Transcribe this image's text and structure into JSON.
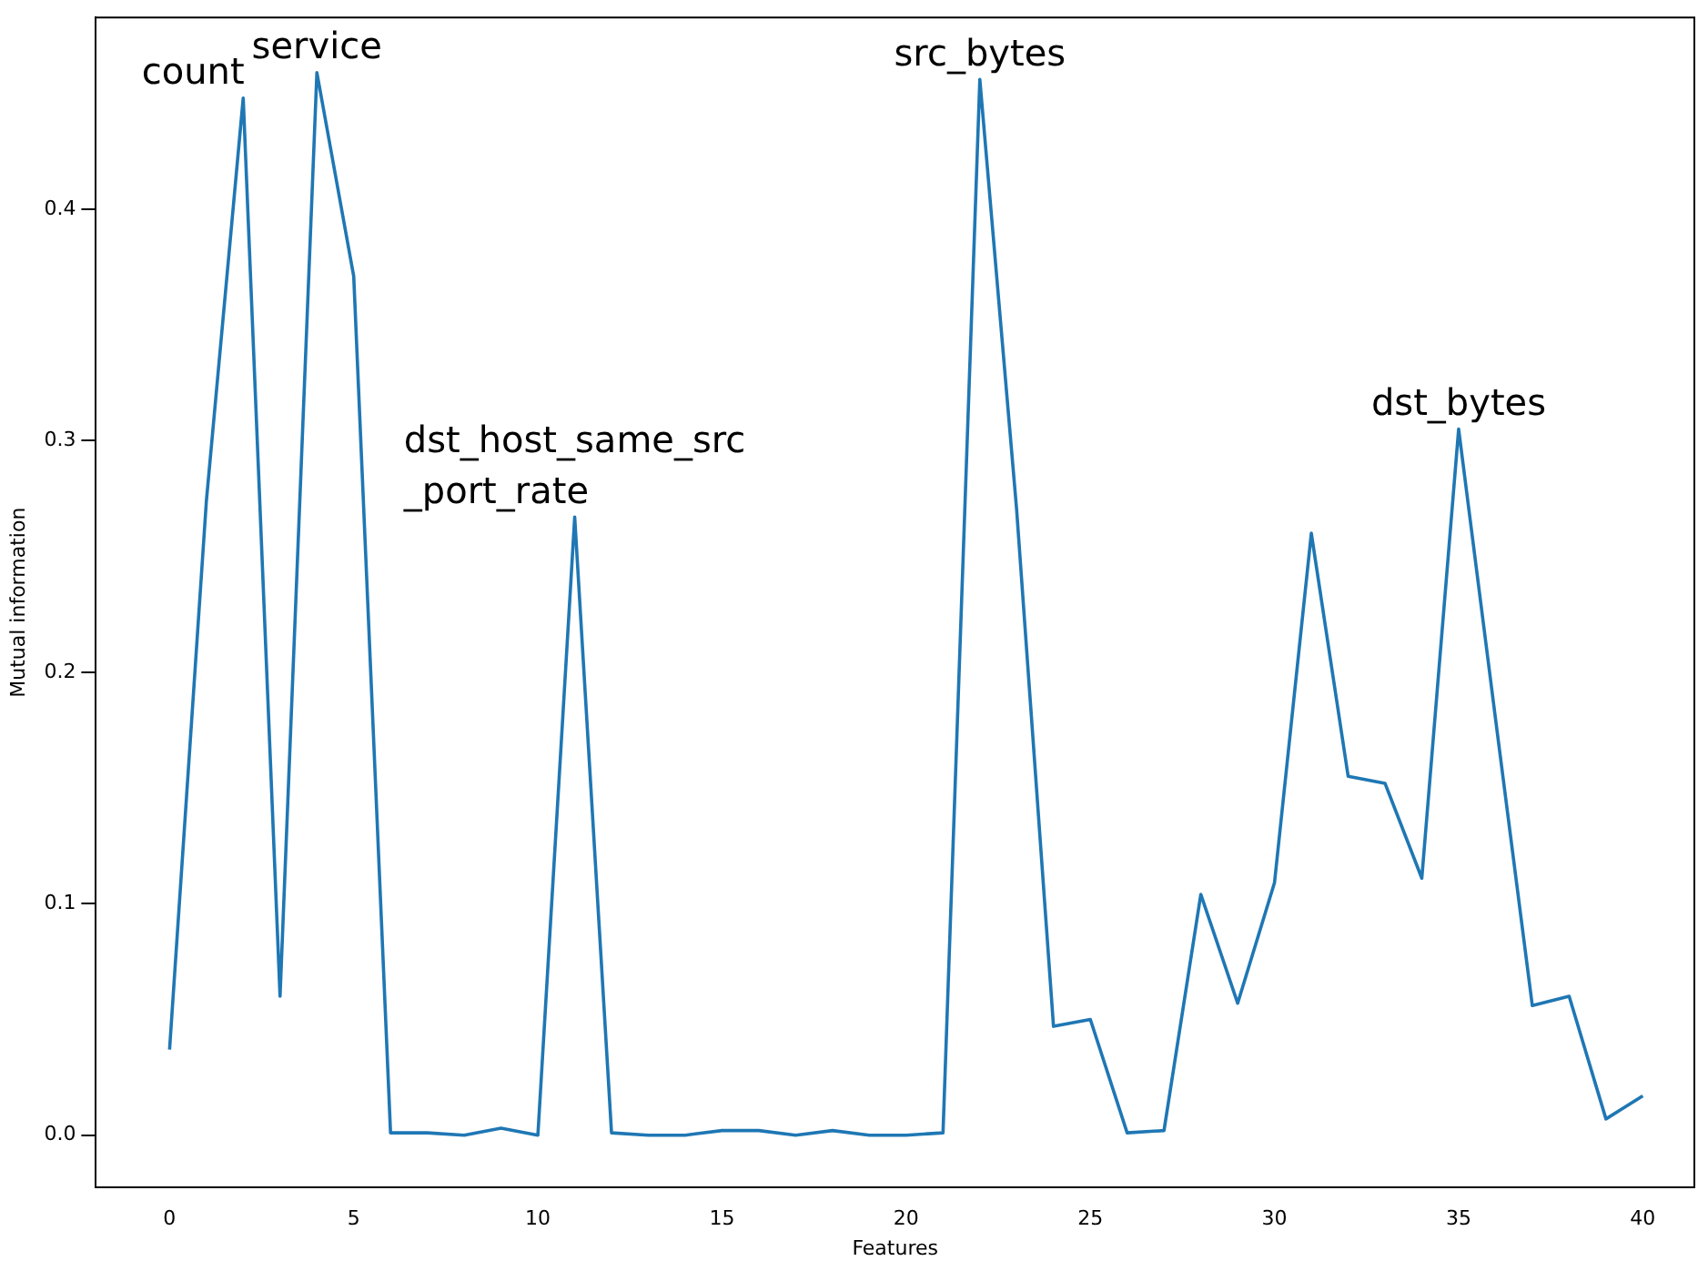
{
  "chart_data": {
    "type": "line",
    "xlabel": "Features",
    "ylabel": "Mutual information",
    "x": [
      0,
      1,
      2,
      3,
      4,
      5,
      6,
      7,
      8,
      9,
      10,
      11,
      12,
      13,
      14,
      15,
      16,
      17,
      18,
      19,
      20,
      21,
      22,
      23,
      24,
      25,
      26,
      27,
      28,
      29,
      30,
      31,
      32,
      33,
      34,
      35,
      36,
      37,
      38,
      39,
      40
    ],
    "series": [
      {
        "color": "#1f77b4",
        "values": [
          0.037,
          0.274,
          0.448,
          0.06,
          0.459,
          0.371,
          0.001,
          0.001,
          0.0,
          0.003,
          0.0,
          0.267,
          0.001,
          0.0,
          0.0,
          0.002,
          0.002,
          0.0,
          0.002,
          0.0,
          0.0,
          0.001,
          0.456,
          0.27,
          0.047,
          0.05,
          0.001,
          0.002,
          0.104,
          0.057,
          0.109,
          0.26,
          0.155,
          0.152,
          0.111,
          0.305,
          0.18,
          0.056,
          0.06,
          0.007,
          0.017
        ]
      }
    ],
    "xlim": [
      -2,
      41.4
    ],
    "ylim": [
      -0.0226,
      0.4828
    ],
    "xticks": [
      0,
      5,
      10,
      15,
      20,
      25,
      30,
      35,
      40
    ],
    "yticks": [
      {
        "value": 0,
        "label": "0.0"
      },
      {
        "value": 0.1,
        "label": "0.1"
      },
      {
        "value": 0.2,
        "label": "0.2"
      },
      {
        "value": 0.3,
        "label": "0.3"
      },
      {
        "value": 0.4,
        "label": "0.4"
      }
    ],
    "annotations": [
      {
        "text": "count",
        "x": 2,
        "y": 0.448
      },
      {
        "text": "service",
        "x": 4,
        "y": 0.459
      },
      {
        "text": "dst_host_same_src\n_port_rate",
        "x": 11,
        "y": 0.267
      },
      {
        "text": "src_bytes",
        "x": 22,
        "y": 0.456
      },
      {
        "text": "dst_bytes",
        "x": 35,
        "y": 0.305
      }
    ],
    "grid": false,
    "legend": false,
    "marker": "none",
    "line_style": "solid"
  }
}
